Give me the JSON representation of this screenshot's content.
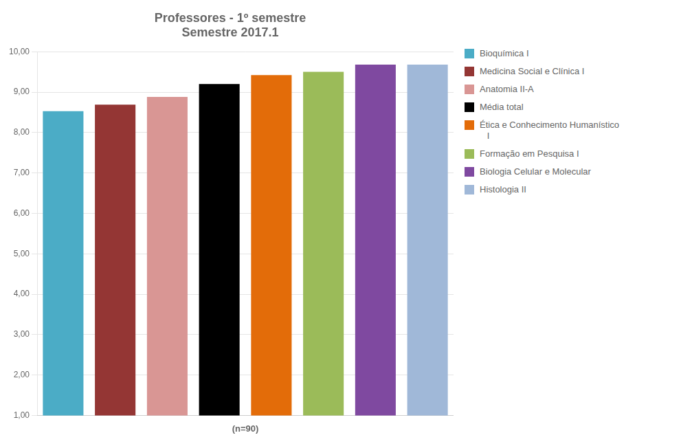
{
  "chart_data": {
    "type": "bar",
    "title": "Professores - 1º semestre",
    "subtitle": "Semestre 2017.1",
    "xlabel": "(n=90)",
    "categories": [
      "Bioquímica I",
      "Medicina Social e Clínica I",
      "Anatomia II-A",
      "Média total",
      "Ética e Conhecimento Humanístico\n   I",
      "Formação em Pesquisa I",
      "Biologia Celular e Molecular",
      "Histologia II"
    ],
    "values": [
      8.53,
      8.69,
      8.88,
      9.2,
      9.42,
      9.5,
      9.68,
      9.68
    ],
    "colors": [
      "#4bacc6",
      "#943634",
      "#d99694",
      "#000000",
      "#e36c09",
      "#9bbb59",
      "#7f49a0",
      "#a0b8d8"
    ],
    "ylim": [
      1.0,
      10.0
    ],
    "yticks": [
      {
        "value": 1.0,
        "label": "1,00"
      },
      {
        "value": 2.0,
        "label": "2,00"
      },
      {
        "value": 3.0,
        "label": "3,00"
      },
      {
        "value": 4.0,
        "label": "4,00"
      },
      {
        "value": 5.0,
        "label": "5,00"
      },
      {
        "value": 6.0,
        "label": "6,00"
      },
      {
        "value": 7.0,
        "label": "7,00"
      },
      {
        "value": 8.0,
        "label": "8,00"
      },
      {
        "value": 9.0,
        "label": "9,00"
      },
      {
        "value": 10.0,
        "label": "10,00"
      }
    ],
    "grid": true,
    "legend": "right",
    "tick_labels": "y"
  }
}
